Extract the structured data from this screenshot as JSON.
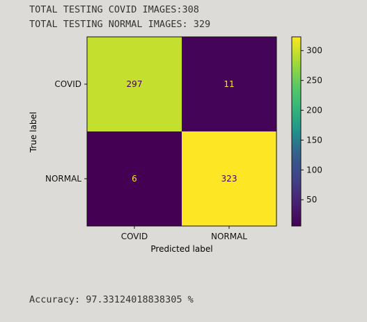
{
  "output": {
    "covid_count_line": "TOTAL TESTING COVID IMAGES:308",
    "normal_count_line": "TOTAL TESTING NORMAL IMAGES: 329",
    "accuracy_line": "Accuracy: 97.33124018838305 %"
  },
  "chart_data": {
    "type": "heatmap",
    "title": "",
    "xlabel": "Predicted label",
    "ylabel": "True label",
    "x_categories": [
      "COVID",
      "NORMAL"
    ],
    "y_categories": [
      "COVID",
      "NORMAL"
    ],
    "matrix": [
      [
        297,
        11
      ],
      [
        6,
        323
      ]
    ],
    "colormap": "viridis",
    "colorbar": {
      "ticks": [
        50,
        100,
        150,
        200,
        250,
        300
      ],
      "range": [
        6,
        323
      ]
    },
    "colors": {
      "cmap_low": "#440154",
      "cmap_high": "#fde725",
      "text_on_dark": "#fde725",
      "text_on_light": "#440154"
    }
  }
}
